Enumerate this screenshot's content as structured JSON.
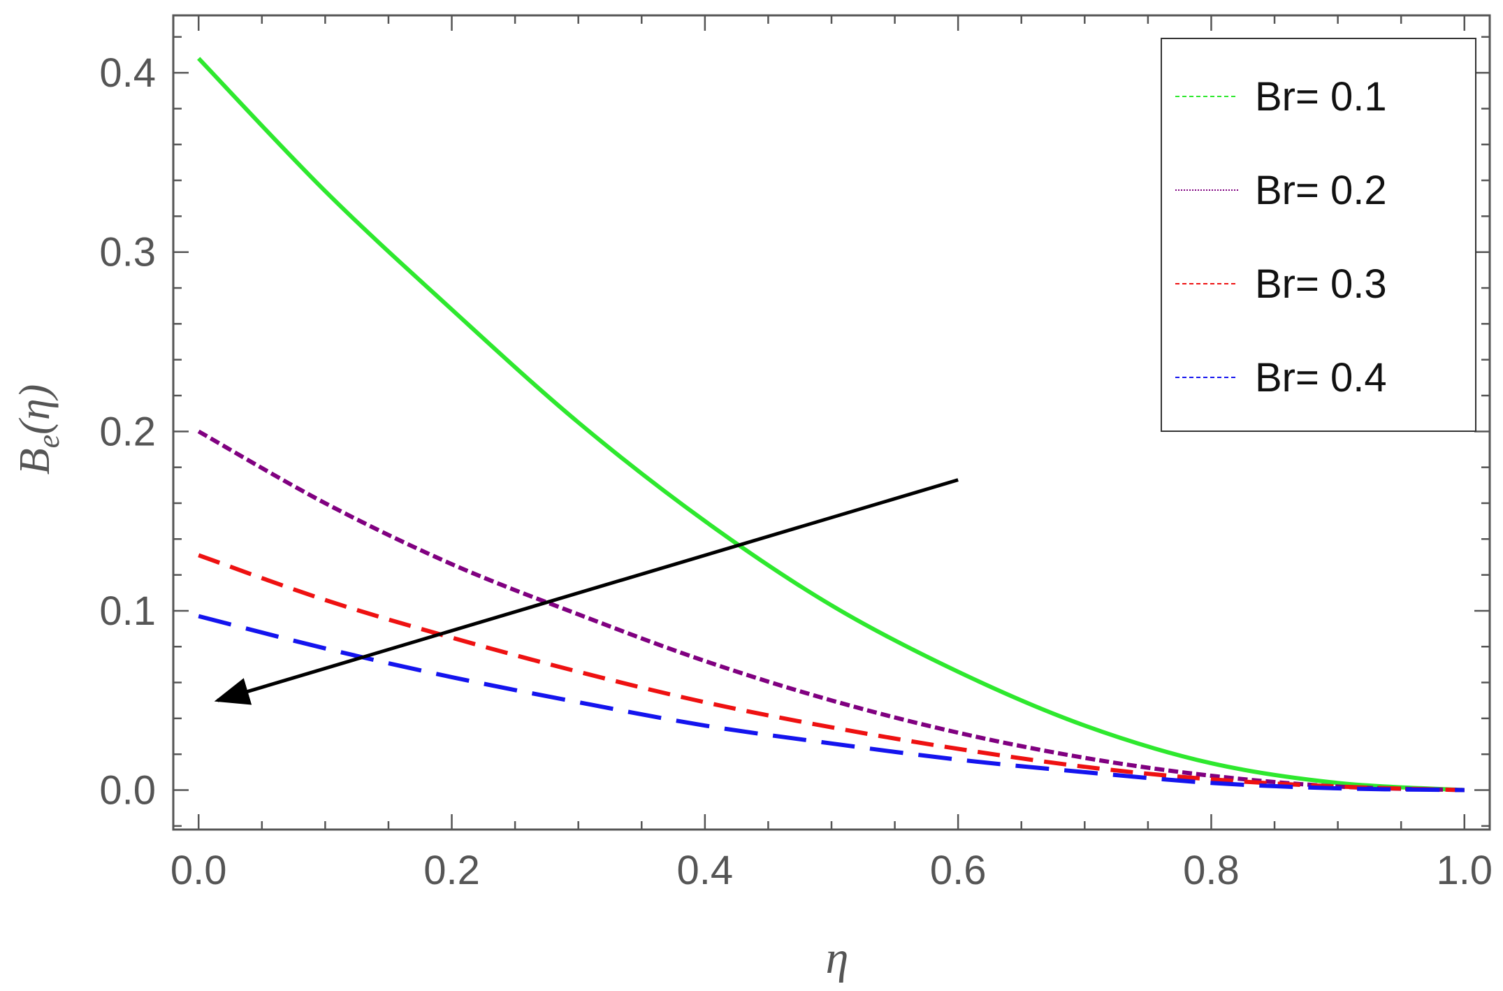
{
  "chart_data": {
    "type": "line",
    "xlabel": "η",
    "ylabel": {
      "base": "B",
      "sub": "e",
      "arg": "(η)"
    },
    "xlim": [
      -0.02,
      1.02
    ],
    "ylim": [
      -0.022,
      0.432
    ],
    "x_ticks": [
      0.0,
      0.2,
      0.4,
      0.6,
      0.8,
      1.0
    ],
    "x_tick_labels": [
      "0.0",
      "0.2",
      "0.4",
      "0.6",
      "0.8",
      "1.0"
    ],
    "y_ticks": [
      0.0,
      0.1,
      0.2,
      0.3,
      0.4
    ],
    "y_tick_labels": [
      "0.0",
      "0.1",
      "0.2",
      "0.3",
      "0.4"
    ],
    "grid": false,
    "legend_position": "top-right",
    "series": [
      {
        "name": "Br= 0.1",
        "color": "#2ee82e",
        "style": "solid",
        "x": [
          0.0,
          0.1,
          0.2,
          0.3,
          0.4,
          0.5,
          0.6,
          0.7,
          0.8,
          0.9,
          1.0
        ],
        "y": [
          0.408,
          0.334,
          0.268,
          0.205,
          0.15,
          0.103,
          0.066,
          0.036,
          0.015,
          0.004,
          0.0
        ]
      },
      {
        "name": "Br= 0.2",
        "color": "#800080",
        "style": "dotted",
        "x": [
          0.0,
          0.1,
          0.2,
          0.3,
          0.4,
          0.5,
          0.6,
          0.7,
          0.8,
          0.9,
          1.0
        ],
        "y": [
          0.2,
          0.16,
          0.126,
          0.098,
          0.072,
          0.05,
          0.032,
          0.018,
          0.008,
          0.002,
          0.0
        ]
      },
      {
        "name": "Br= 0.3",
        "color": "#ee1111",
        "style": "dashed",
        "x": [
          0.0,
          0.1,
          0.2,
          0.3,
          0.4,
          0.5,
          0.6,
          0.7,
          0.8,
          0.9,
          1.0
        ],
        "y": [
          0.131,
          0.106,
          0.085,
          0.066,
          0.049,
          0.035,
          0.023,
          0.013,
          0.006,
          0.002,
          0.0
        ]
      },
      {
        "name": "Br= 0.4",
        "color": "#1414ee",
        "style": "longdash",
        "x": [
          0.0,
          0.1,
          0.2,
          0.3,
          0.4,
          0.5,
          0.6,
          0.7,
          0.8,
          0.9,
          1.0
        ],
        "y": [
          0.097,
          0.079,
          0.063,
          0.049,
          0.036,
          0.026,
          0.017,
          0.01,
          0.004,
          0.001,
          0.0
        ]
      }
    ],
    "annotations": [
      {
        "type": "arrow",
        "color": "#000000",
        "from": [
          0.6,
          0.173
        ],
        "to": [
          0.015,
          0.05
        ]
      }
    ]
  }
}
